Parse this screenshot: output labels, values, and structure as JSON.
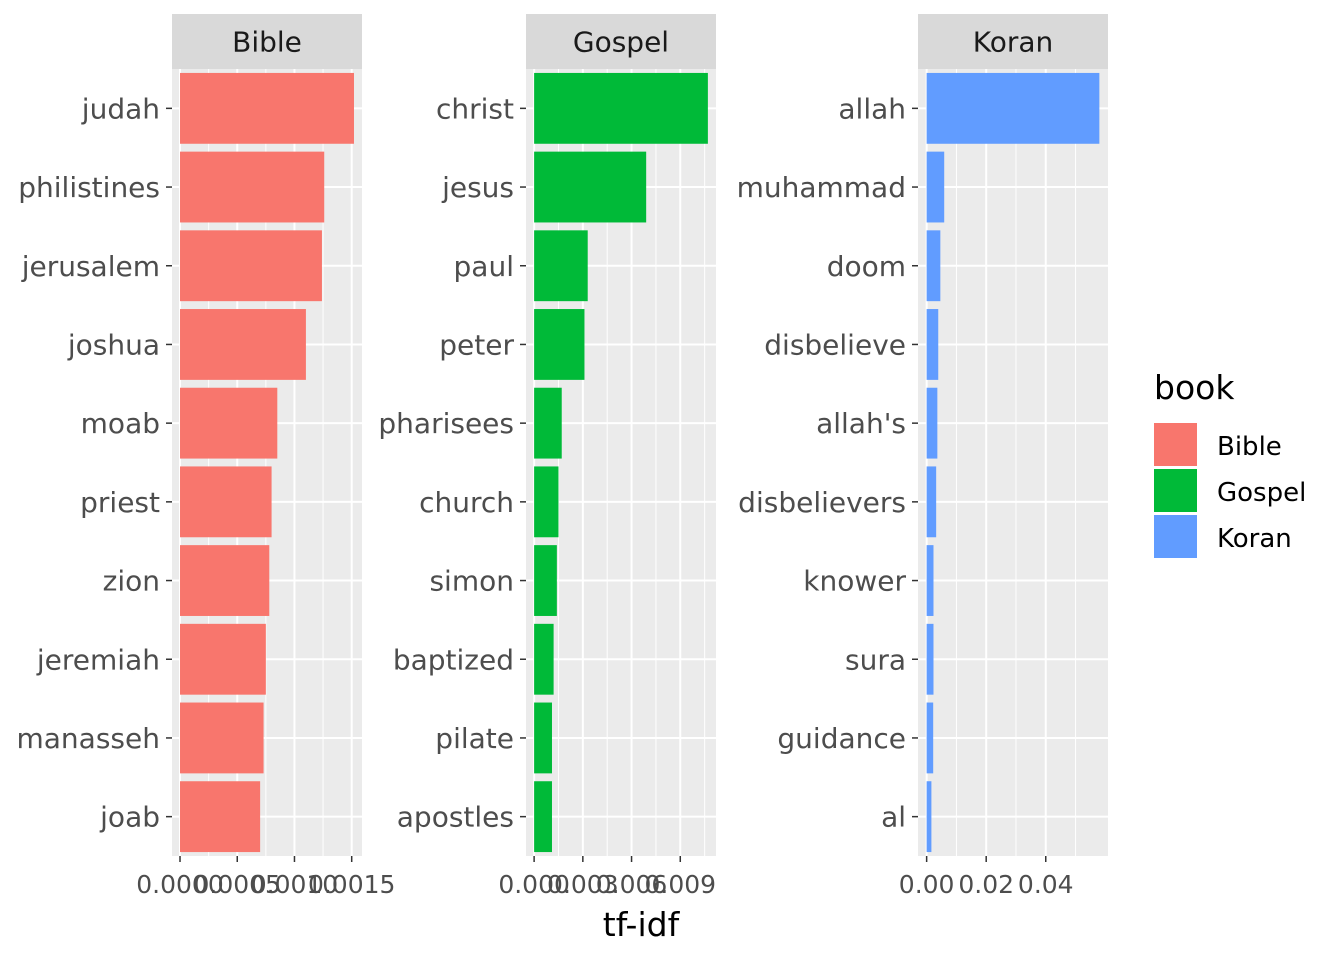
{
  "chart_data": {
    "type": "bar",
    "orientation": "horizontal",
    "x_title": "tf-idf",
    "legend": {
      "title": "book",
      "placement": "right",
      "entries": [
        {
          "label": "Bible",
          "color": "#F8766D"
        },
        {
          "label": "Gospel",
          "color": "#00BA38"
        },
        {
          "label": "Koran",
          "color": "#619CFF"
        }
      ]
    },
    "panels": [
      {
        "title": "Bible",
        "color": "#F8766D",
        "categories": [
          "judah",
          "philistines",
          "jerusalem",
          "joshua",
          "moab",
          "priest",
          "zion",
          "jeremiah",
          "manasseh",
          "joab"
        ],
        "values": [
          0.00152,
          0.00126,
          0.00124,
          0.0011,
          0.00085,
          0.0008,
          0.00078,
          0.00075,
          0.00073,
          0.0007
        ],
        "xlim": [
          -7e-05,
          0.00159
        ],
        "ticks": [
          0.0,
          0.0005,
          0.001,
          0.0015
        ],
        "tick_labels": [
          "0.0000",
          "0.0005",
          "0.0010",
          "0.0015"
        ]
      },
      {
        "title": "Gospel",
        "color": "#00BA38",
        "categories": [
          "christ",
          "jesus",
          "paul",
          "peter",
          "pharisees",
          "church",
          "simon",
          "baptized",
          "pilate",
          "apostles"
        ],
        "values": [
          0.0107,
          0.0069,
          0.0033,
          0.0031,
          0.0017,
          0.0015,
          0.0014,
          0.0012,
          0.0011,
          0.0011
        ],
        "xlim": [
          -0.0005,
          0.0112
        ],
        "ticks": [
          0.0,
          0.003,
          0.006,
          0.009
        ],
        "tick_labels": [
          "0.000",
          "0.003",
          "0.006",
          "0.009"
        ]
      },
      {
        "title": "Koran",
        "color": "#619CFF",
        "categories": [
          "allah",
          "muhammad",
          "doom",
          "disbelieve",
          "allah's",
          "disbelievers",
          "knower",
          "sura",
          "guidance",
          "al"
        ],
        "values": [
          0.058,
          0.0059,
          0.0046,
          0.0039,
          0.0036,
          0.0032,
          0.0023,
          0.0023,
          0.0022,
          0.0016
        ],
        "xlim": [
          -0.0029,
          0.0609
        ],
        "ticks": [
          0.0,
          0.02,
          0.04
        ],
        "tick_labels": [
          "0.00",
          "0.02",
          "0.04"
        ]
      }
    ]
  }
}
